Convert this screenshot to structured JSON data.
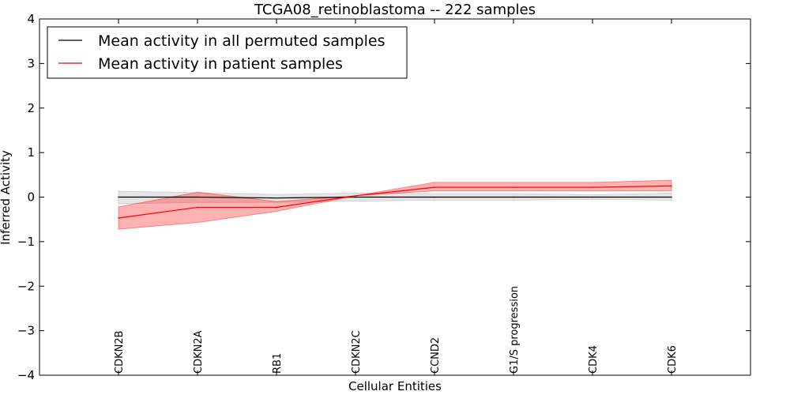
{
  "chart_data": {
    "type": "line",
    "title": "TCGA08_retinoblastoma -- 222 samples",
    "xlabel": "Cellular Entities",
    "ylabel": "Inferred Activity",
    "ylim": [
      -4,
      4
    ],
    "yticks": [
      "4",
      "3",
      "2",
      "1",
      "0",
      "−1",
      "−2",
      "−3",
      "−4"
    ],
    "ytick_values": [
      4,
      3,
      2,
      1,
      0,
      -1,
      -2,
      -3,
      -4
    ],
    "categories": [
      "CDKN2B",
      "CDKN2A",
      "RB1",
      "CDKN2C",
      "CCND2",
      "G1/S progression",
      "CDK4",
      "CDK6"
    ],
    "legend_position": "top-left",
    "series": [
      {
        "name": "Mean activity in all permuted samples",
        "color": "#000000",
        "band_color": "#bfbfbf",
        "values": [
          0.0,
          0.0,
          -0.02,
          0.0,
          0.0,
          0.0,
          0.0,
          0.0
        ],
        "lower": [
          -0.15,
          -0.12,
          -0.12,
          -0.09,
          -0.07,
          -0.07,
          -0.05,
          -0.07
        ],
        "upper": [
          0.13,
          0.1,
          0.06,
          0.09,
          0.08,
          0.08,
          0.05,
          0.09
        ]
      },
      {
        "name": "Mean activity in patient samples",
        "color": "#ff0000",
        "band_color": "#ff0000",
        "values": [
          -0.47,
          -0.23,
          -0.23,
          0.03,
          0.22,
          0.22,
          0.22,
          0.25
        ],
        "lower": [
          -0.72,
          -0.57,
          -0.32,
          0.03,
          0.14,
          0.14,
          0.14,
          0.14
        ],
        "upper": [
          -0.22,
          0.11,
          -0.1,
          0.03,
          0.33,
          0.33,
          0.33,
          0.38
        ]
      }
    ]
  }
}
